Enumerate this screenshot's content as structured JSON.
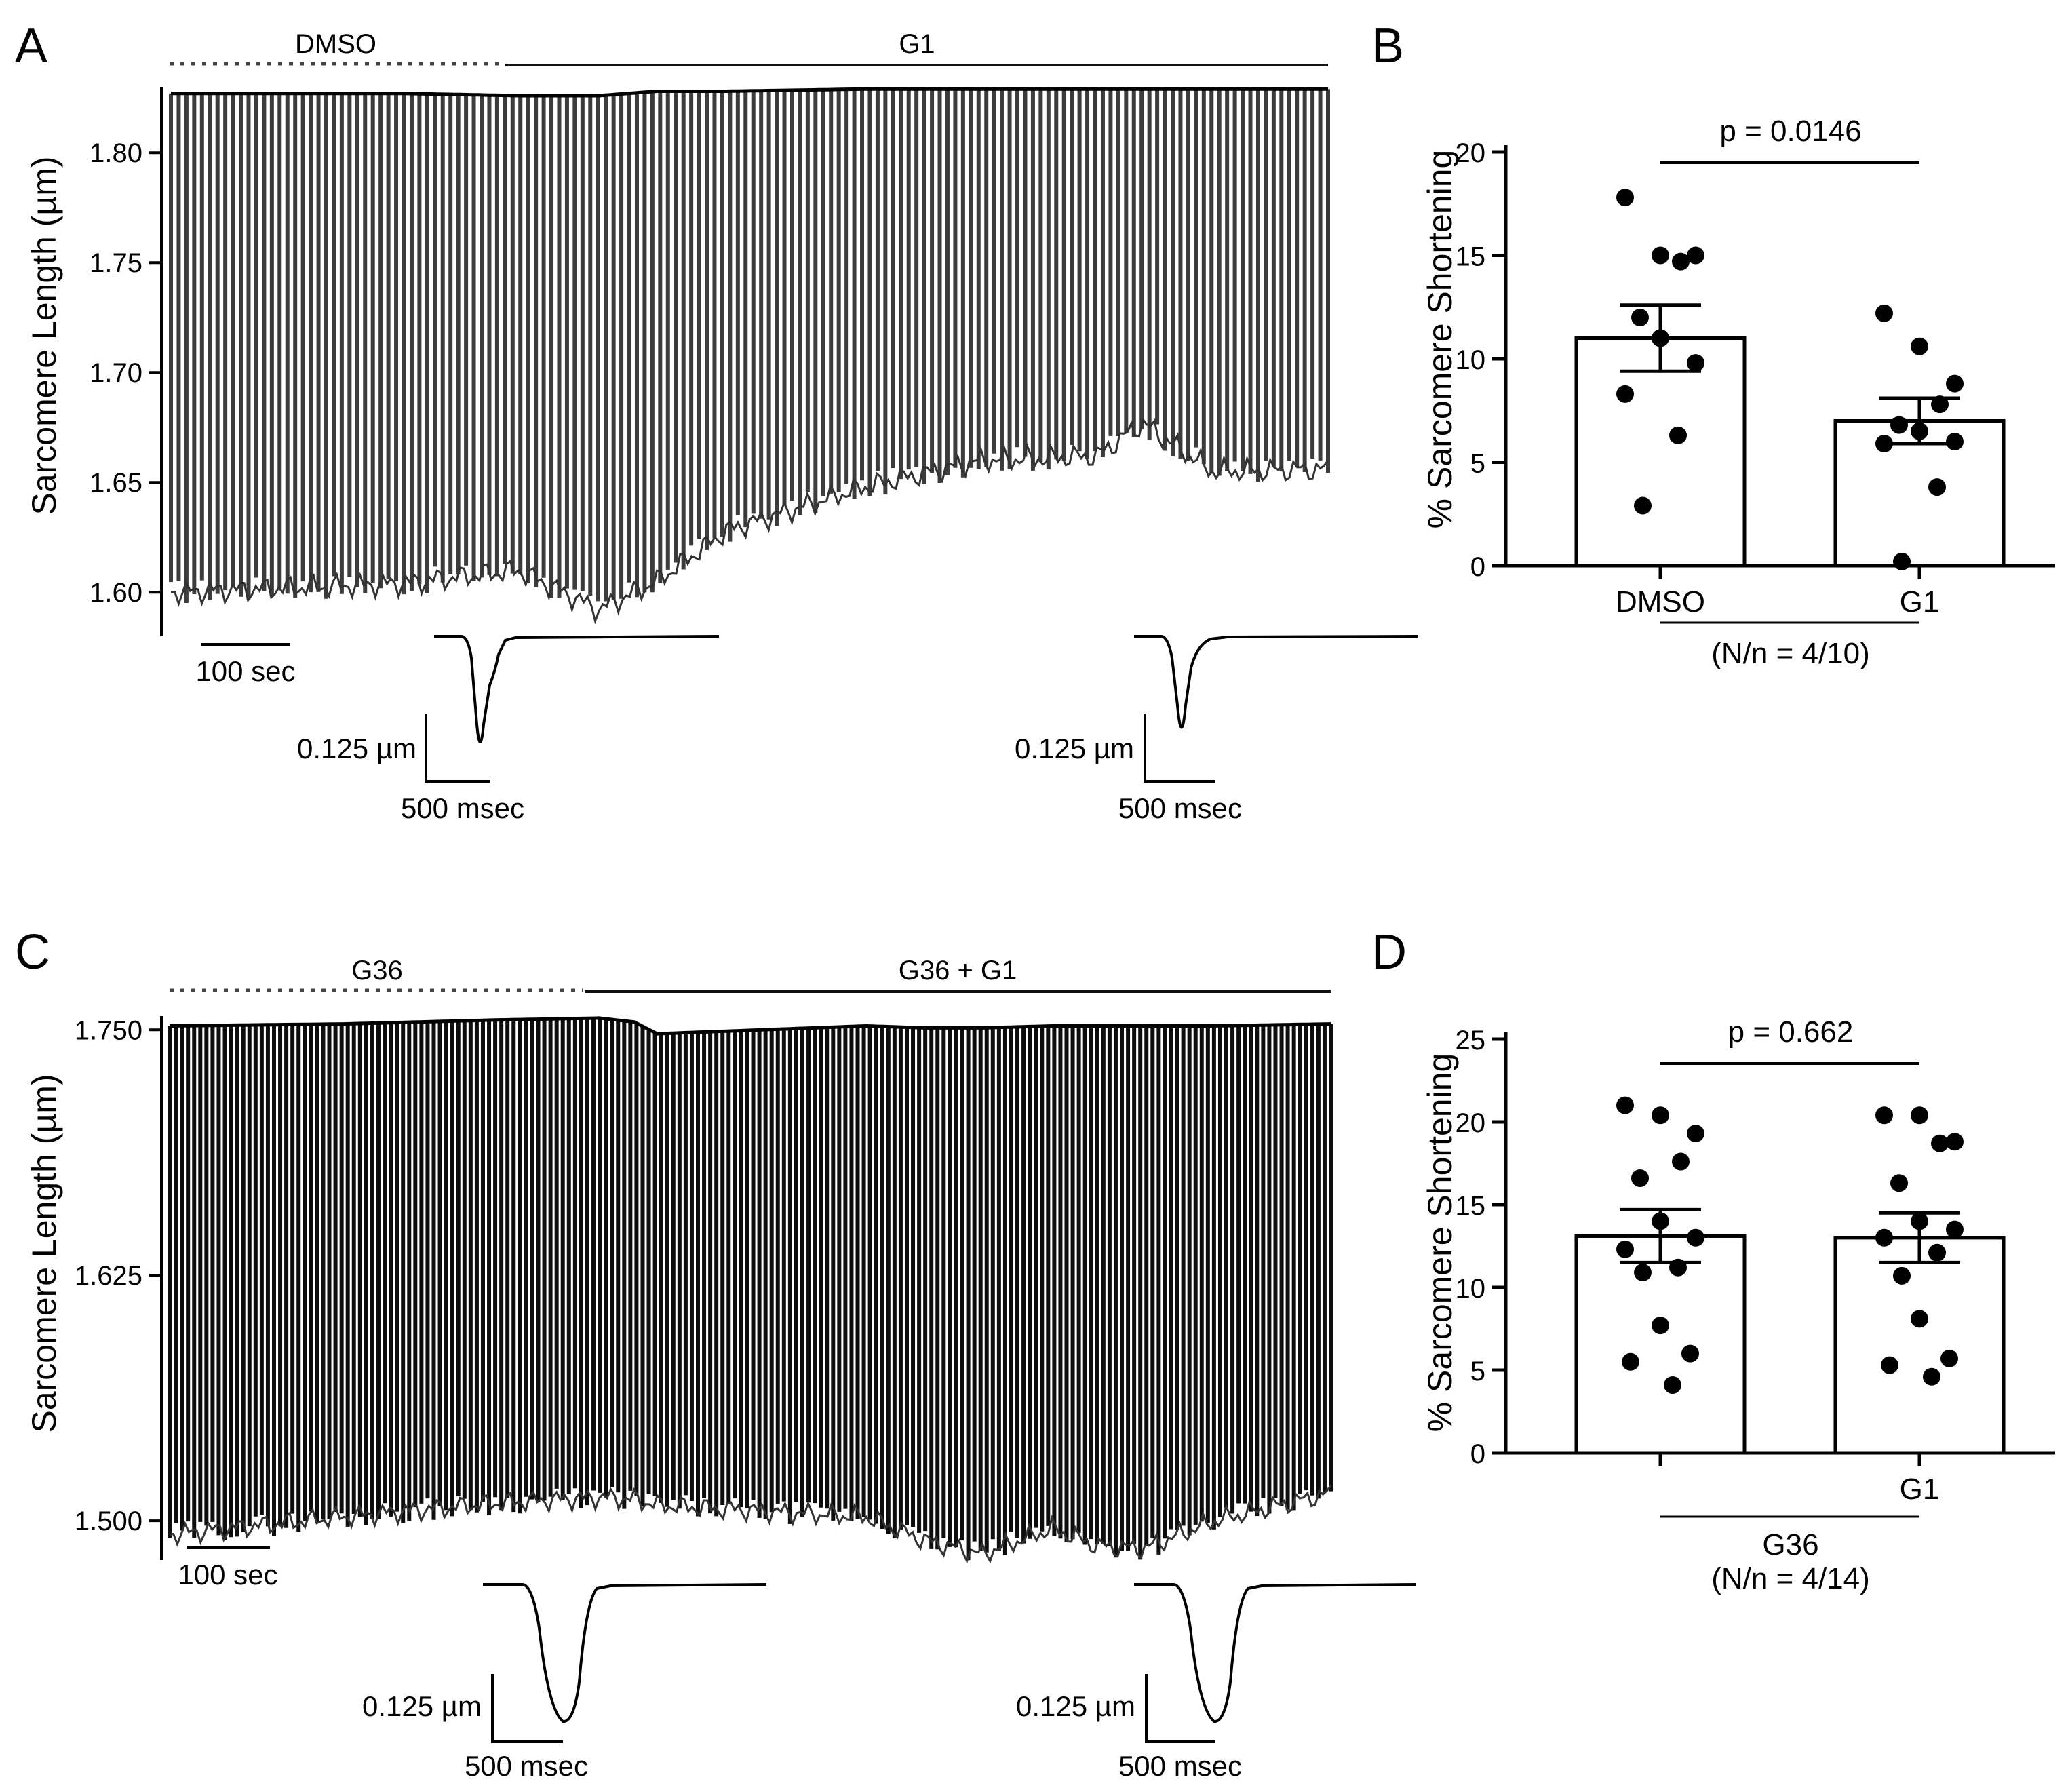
{
  "panels": {
    "A": {
      "letter": "A",
      "condition_dotted": "DMSO",
      "condition_solid": "G1",
      "ylabel": "Sarcomere Length (µm)",
      "yticks": [
        "1.60",
        "1.65",
        "1.70",
        "1.75",
        "1.80"
      ],
      "time_scale": "100 sec",
      "inset_amplitude": "0.125 µm",
      "inset_time": "500 msec"
    },
    "B": {
      "letter": "B",
      "ylabel": "% Sarcomere Shortening",
      "yticks": [
        "0",
        "5",
        "10",
        "15",
        "20"
      ],
      "categories": [
        "DMSO",
        "G1"
      ],
      "pvalue": "p = 0.0146",
      "footnote": "(N/n = 4/10)"
    },
    "C": {
      "letter": "C",
      "condition_dotted": "G36",
      "condition_solid": "G36 + G1",
      "ylabel": "Sarcomere Length (µm)",
      "yticks": [
        "1.500",
        "1.625",
        "1.750"
      ],
      "time_scale": "100 sec",
      "inset_amplitude": "0.125 µm",
      "inset_time": "500 msec"
    },
    "D": {
      "letter": "D",
      "ylabel": "% Sarcomere Shortening",
      "yticks": [
        "0",
        "5",
        "10",
        "15",
        "20",
        "25"
      ],
      "categories": [
        "",
        "G1"
      ],
      "group_label": "G36",
      "pvalue": "p = 0.662",
      "footnote": "(N/n = 4/14)"
    }
  },
  "chart_data": [
    {
      "panel": "A",
      "type": "line",
      "ylabel": "Sarcomere Length (µm)",
      "xlabel": "",
      "ylim": [
        1.58,
        1.83
      ],
      "series": [
        {
          "x_fraction": [
            0,
            0.2,
            0.3,
            0.37,
            0.42,
            0.48,
            0.6,
            0.7,
            0.8,
            0.84,
            0.9,
            1.0
          ],
          "diastolic": [
            1.827,
            1.827,
            1.826,
            1.826,
            1.828,
            1.828,
            1.829,
            1.829,
            1.829,
            1.829,
            1.829,
            1.829
          ],
          "systolic": [
            1.6,
            1.604,
            1.61,
            1.592,
            1.605,
            1.628,
            1.648,
            1.66,
            1.662,
            1.677,
            1.655,
            1.656
          ]
        }
      ]
    },
    {
      "panel": "B",
      "type": "bar",
      "categories": [
        "DMSO",
        "G1"
      ],
      "values": [
        11.0,
        7.0
      ],
      "sem": [
        1.6,
        1.1
      ],
      "points": [
        [
          17.8,
          15.0,
          15.0,
          14.7,
          12.0,
          11.0,
          9.8,
          8.3,
          6.3,
          2.9
        ],
        [
          12.2,
          10.6,
          8.8,
          7.8,
          6.8,
          6.5,
          6.0,
          5.9,
          3.8,
          0.2
        ]
      ],
      "ylabel": "% Sarcomere Shortening",
      "ylim": [
        0,
        20
      ],
      "pvalue": "p = 0.0146"
    },
    {
      "panel": "C",
      "type": "line",
      "ylabel": "Sarcomere Length (µm)",
      "xlabel": "",
      "ylim": [
        1.48,
        1.757
      ],
      "series": [
        {
          "x_fraction": [
            0,
            0.15,
            0.28,
            0.37,
            0.4,
            0.42,
            0.6,
            0.65,
            0.7,
            0.76,
            0.8,
            0.84,
            0.9,
            1.0
          ],
          "diastolic": [
            1.752,
            1.753,
            1.755,
            1.756,
            1.754,
            1.748,
            1.752,
            1.751,
            1.751,
            1.752,
            1.752,
            1.752,
            1.752,
            1.753
          ],
          "systolic": [
            1.493,
            1.502,
            1.509,
            1.512,
            1.511,
            1.508,
            1.502,
            1.49,
            1.483,
            1.496,
            1.487,
            1.486,
            1.5,
            1.514
          ]
        }
      ]
    },
    {
      "panel": "D",
      "type": "bar",
      "categories": [
        "",
        "G1"
      ],
      "values": [
        13.1,
        13.0
      ],
      "sem": [
        1.6,
        1.5
      ],
      "points": [
        [
          21.0,
          20.4,
          19.3,
          17.6,
          16.6,
          14.0,
          13.0,
          12.3,
          11.2,
          10.9,
          7.7,
          6.0,
          5.5,
          4.1
        ],
        [
          20.4,
          20.4,
          18.8,
          18.7,
          16.3,
          14.0,
          13.5,
          13.0,
          12.1,
          10.7,
          8.1,
          5.7,
          5.3,
          4.6
        ]
      ],
      "ylabel": "% Sarcomere Shortening",
      "ylim": [
        0,
        25
      ],
      "pvalue": "p = 0.662"
    }
  ]
}
